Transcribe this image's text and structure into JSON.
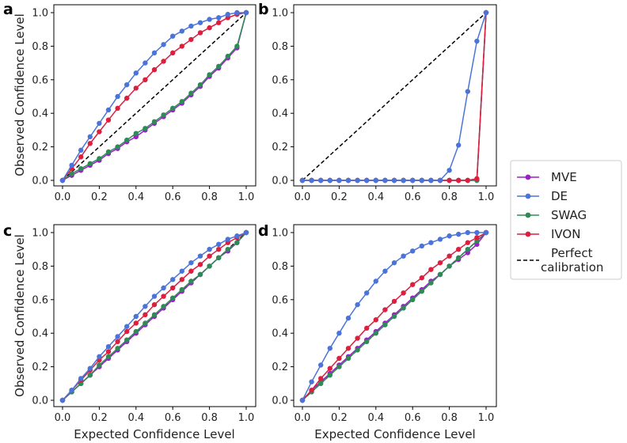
{
  "colors": {
    "MVE": "#9b1fc9",
    "DE": "#4a74d9",
    "SWAG": "#2e8b57",
    "IVON": "#dc1f3f",
    "perfect": "#000000"
  },
  "legend": {
    "entries": [
      {
        "name": "MVE",
        "label": "MVE",
        "color": "#9b1fc9",
        "style": "marker"
      },
      {
        "name": "DE",
        "label": "DE",
        "color": "#4a74d9",
        "style": "marker"
      },
      {
        "name": "SWAG",
        "label": "SWAG",
        "color": "#2e8b57",
        "style": "marker"
      },
      {
        "name": "IVON",
        "label": "IVON",
        "color": "#dc1f3f",
        "style": "marker"
      },
      {
        "name": "perfect",
        "label": "Perfect",
        "label2": "calibration",
        "color": "#000000",
        "style": "dashed"
      }
    ]
  },
  "chart_data": [
    {
      "panel": "a",
      "type": "line",
      "xlabel": "",
      "ylabel": "Observed Confidence Level",
      "xlim": [
        0,
        1
      ],
      "ylim": [
        0,
        1
      ],
      "xticks": [
        "0.0",
        "0.2",
        "0.4",
        "0.6",
        "0.8",
        "1.0"
      ],
      "yticks": [
        "0.0",
        "0.2",
        "0.4",
        "0.6",
        "0.8",
        "1.0"
      ],
      "x": [
        0,
        0.05,
        0.1,
        0.15,
        0.2,
        0.25,
        0.3,
        0.35,
        0.4,
        0.45,
        0.5,
        0.55,
        0.6,
        0.65,
        0.7,
        0.75,
        0.8,
        0.85,
        0.9,
        0.95,
        1.0
      ],
      "series": [
        {
          "name": "MVE",
          "values": [
            0,
            0.03,
            0.06,
            0.09,
            0.12,
            0.16,
            0.19,
            0.23,
            0.26,
            0.3,
            0.34,
            0.38,
            0.42,
            0.46,
            0.51,
            0.56,
            0.62,
            0.67,
            0.73,
            0.79,
            1.0
          ]
        },
        {
          "name": "DE",
          "values": [
            0,
            0.09,
            0.18,
            0.26,
            0.34,
            0.42,
            0.5,
            0.57,
            0.64,
            0.7,
            0.76,
            0.81,
            0.86,
            0.89,
            0.92,
            0.94,
            0.96,
            0.97,
            0.99,
            1.0,
            1.0
          ]
        },
        {
          "name": "SWAG",
          "values": [
            0,
            0.04,
            0.07,
            0.1,
            0.13,
            0.17,
            0.2,
            0.24,
            0.28,
            0.31,
            0.35,
            0.39,
            0.43,
            0.47,
            0.52,
            0.57,
            0.63,
            0.68,
            0.74,
            0.8,
            1.0
          ]
        },
        {
          "name": "IVON",
          "values": [
            0,
            0.07,
            0.14,
            0.22,
            0.29,
            0.36,
            0.43,
            0.49,
            0.55,
            0.6,
            0.66,
            0.71,
            0.76,
            0.8,
            0.84,
            0.88,
            0.91,
            0.94,
            0.97,
            0.99,
            1.0
          ]
        },
        {
          "name": "Perfect calibration",
          "style": "dashed",
          "values": [
            0,
            0.05,
            0.1,
            0.15,
            0.2,
            0.25,
            0.3,
            0.35,
            0.4,
            0.45,
            0.5,
            0.55,
            0.6,
            0.65,
            0.7,
            0.75,
            0.8,
            0.85,
            0.9,
            0.95,
            1.0
          ]
        }
      ]
    },
    {
      "panel": "b",
      "type": "line",
      "xlabel": "",
      "ylabel": "",
      "xlim": [
        0,
        1
      ],
      "ylim": [
        0,
        1
      ],
      "xticks": [
        "0.0",
        "0.2",
        "0.4",
        "0.6",
        "0.8",
        "1.0"
      ],
      "yticks": [
        "0.0",
        "0.2",
        "0.4",
        "0.6",
        "0.8",
        "1.0"
      ],
      "x": [
        0,
        0.05,
        0.1,
        0.15,
        0.2,
        0.25,
        0.3,
        0.35,
        0.4,
        0.45,
        0.5,
        0.55,
        0.6,
        0.65,
        0.7,
        0.75,
        0.8,
        0.85,
        0.9,
        0.95,
        1.0
      ],
      "series": [
        {
          "name": "MVE",
          "values": [
            0,
            0,
            0,
            0,
            0,
            0,
            0,
            0,
            0,
            0,
            0,
            0,
            0,
            0,
            0,
            0,
            0,
            0,
            0,
            0,
            1.0
          ]
        },
        {
          "name": "DE",
          "values": [
            0,
            0,
            0,
            0,
            0,
            0,
            0,
            0,
            0,
            0,
            0,
            0,
            0,
            0,
            0,
            0,
            0.06,
            0.21,
            0.53,
            0.83,
            1.0
          ]
        },
        {
          "name": "SWAG",
          "values": [
            0,
            0,
            0,
            0,
            0,
            0,
            0,
            0,
            0,
            0,
            0,
            0,
            0,
            0,
            0,
            0,
            0,
            0,
            0,
            0,
            1.0
          ]
        },
        {
          "name": "IVON",
          "values": [
            0,
            0,
            0,
            0,
            0,
            0,
            0,
            0,
            0,
            0,
            0,
            0,
            0,
            0,
            0,
            0,
            0,
            0,
            0,
            0.01,
            1.0
          ]
        },
        {
          "name": "Perfect calibration",
          "style": "dashed",
          "values": [
            0,
            0.05,
            0.1,
            0.15,
            0.2,
            0.25,
            0.3,
            0.35,
            0.4,
            0.45,
            0.5,
            0.55,
            0.6,
            0.65,
            0.7,
            0.75,
            0.8,
            0.85,
            0.9,
            0.95,
            1.0
          ]
        }
      ]
    },
    {
      "panel": "c",
      "type": "line",
      "xlabel": "Expected Confidence Level",
      "ylabel": "Observed Confidence Level",
      "xlim": [
        0,
        1
      ],
      "ylim": [
        0,
        1
      ],
      "xticks": [
        "0.0",
        "0.2",
        "0.4",
        "0.6",
        "0.8",
        "1.0"
      ],
      "yticks": [
        "0.0",
        "0.2",
        "0.4",
        "0.6",
        "0.8",
        "1.0"
      ],
      "x": [
        0,
        0.05,
        0.1,
        0.15,
        0.2,
        0.25,
        0.3,
        0.35,
        0.4,
        0.45,
        0.5,
        0.55,
        0.6,
        0.65,
        0.7,
        0.75,
        0.8,
        0.85,
        0.9,
        0.95,
        1.0
      ],
      "series": [
        {
          "name": "MVE",
          "values": [
            0,
            0.05,
            0.1,
            0.15,
            0.2,
            0.25,
            0.3,
            0.35,
            0.4,
            0.45,
            0.5,
            0.55,
            0.6,
            0.65,
            0.7,
            0.75,
            0.8,
            0.85,
            0.89,
            0.94,
            1.0
          ]
        },
        {
          "name": "DE",
          "values": [
            0,
            0.06,
            0.13,
            0.19,
            0.26,
            0.32,
            0.38,
            0.44,
            0.5,
            0.56,
            0.62,
            0.67,
            0.72,
            0.77,
            0.82,
            0.86,
            0.9,
            0.93,
            0.96,
            0.98,
            1.0
          ]
        },
        {
          "name": "SWAG",
          "values": [
            0,
            0.05,
            0.1,
            0.15,
            0.21,
            0.26,
            0.31,
            0.36,
            0.41,
            0.46,
            0.51,
            0.56,
            0.61,
            0.66,
            0.71,
            0.75,
            0.8,
            0.85,
            0.9,
            0.94,
            1.0
          ]
        },
        {
          "name": "IVON",
          "values": [
            0,
            0.06,
            0.12,
            0.18,
            0.24,
            0.29,
            0.35,
            0.41,
            0.46,
            0.51,
            0.57,
            0.62,
            0.67,
            0.72,
            0.77,
            0.81,
            0.86,
            0.9,
            0.94,
            0.97,
            1.0
          ]
        },
        {
          "name": "Perfect calibration",
          "style": "dashed",
          "values": [
            0,
            0.05,
            0.1,
            0.15,
            0.2,
            0.25,
            0.3,
            0.35,
            0.4,
            0.45,
            0.5,
            0.55,
            0.6,
            0.65,
            0.7,
            0.75,
            0.8,
            0.85,
            0.9,
            0.95,
            1.0
          ]
        }
      ]
    },
    {
      "panel": "d",
      "type": "line",
      "xlabel": "Expected Confidence Level",
      "ylabel": "",
      "xlim": [
        0,
        1
      ],
      "ylim": [
        0,
        1
      ],
      "xticks": [
        "0.0",
        "0.2",
        "0.4",
        "0.6",
        "0.8",
        "1.0"
      ],
      "yticks": [
        "0.0",
        "0.2",
        "0.4",
        "0.6",
        "0.8",
        "1.0"
      ],
      "x": [
        0,
        0.05,
        0.1,
        0.15,
        0.2,
        0.25,
        0.3,
        0.35,
        0.4,
        0.45,
        0.5,
        0.55,
        0.6,
        0.65,
        0.7,
        0.75,
        0.8,
        0.85,
        0.9,
        0.95,
        1.0
      ],
      "series": [
        {
          "name": "MVE",
          "values": [
            0,
            0.06,
            0.11,
            0.16,
            0.21,
            0.26,
            0.31,
            0.36,
            0.41,
            0.46,
            0.51,
            0.56,
            0.61,
            0.66,
            0.71,
            0.75,
            0.8,
            0.84,
            0.88,
            0.93,
            1.0
          ]
        },
        {
          "name": "DE",
          "values": [
            0,
            0.11,
            0.21,
            0.31,
            0.4,
            0.49,
            0.57,
            0.64,
            0.71,
            0.77,
            0.82,
            0.86,
            0.89,
            0.92,
            0.94,
            0.96,
            0.98,
            0.99,
            1.0,
            1.0,
            1.0
          ]
        },
        {
          "name": "SWAG",
          "values": [
            0,
            0.05,
            0.1,
            0.15,
            0.2,
            0.25,
            0.3,
            0.35,
            0.4,
            0.45,
            0.5,
            0.55,
            0.6,
            0.65,
            0.7,
            0.75,
            0.8,
            0.85,
            0.9,
            0.95,
            1.0
          ]
        },
        {
          "name": "IVON",
          "values": [
            0,
            0.06,
            0.13,
            0.19,
            0.25,
            0.31,
            0.37,
            0.43,
            0.48,
            0.54,
            0.59,
            0.64,
            0.69,
            0.73,
            0.78,
            0.82,
            0.86,
            0.9,
            0.94,
            0.97,
            1.0
          ]
        },
        {
          "name": "Perfect calibration",
          "style": "dashed",
          "values": [
            0,
            0.05,
            0.1,
            0.15,
            0.2,
            0.25,
            0.3,
            0.35,
            0.4,
            0.45,
            0.5,
            0.55,
            0.6,
            0.65,
            0.7,
            0.75,
            0.8,
            0.85,
            0.9,
            0.95,
            1.0
          ]
        }
      ]
    }
  ]
}
